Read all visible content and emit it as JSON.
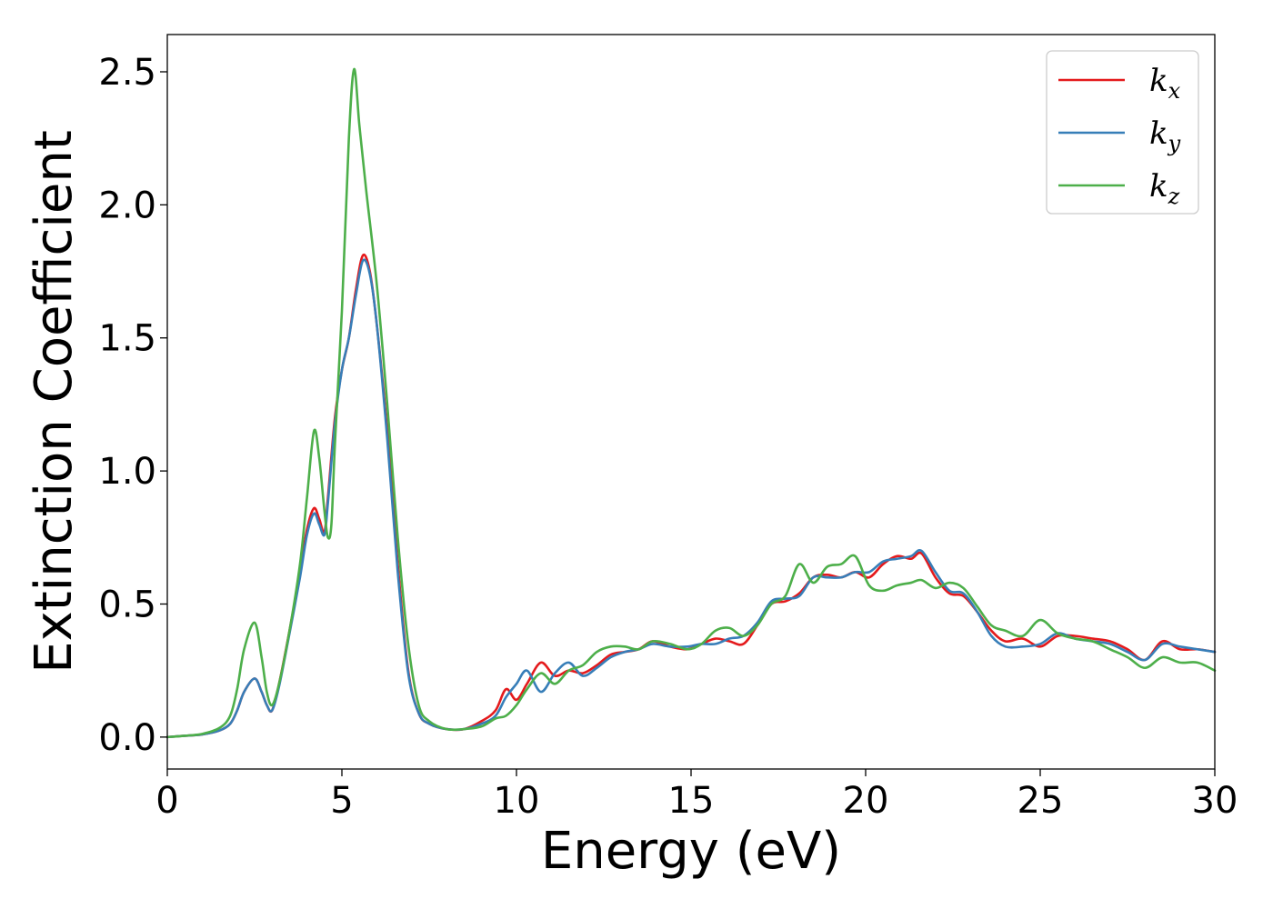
{
  "chart_data": {
    "type": "line",
    "title": "",
    "xlabel": "Energy (eV)",
    "ylabel": "Extinction Coefficient",
    "xlim": [
      0,
      30
    ],
    "ylim": [
      -0.12,
      2.64
    ],
    "xticks": [
      0,
      5,
      10,
      15,
      20,
      25,
      30
    ],
    "xtick_labels": [
      "0",
      "5",
      "10",
      "15",
      "20",
      "25",
      "30"
    ],
    "yticks": [
      0.0,
      0.5,
      1.0,
      1.5,
      2.0,
      2.5
    ],
    "ytick_labels": [
      "0.0",
      "0.5",
      "1.0",
      "1.5",
      "2.0",
      "2.5"
    ],
    "grid": false,
    "legend_position": "top-right",
    "series": [
      {
        "name": "k_x",
        "legend_base": "k",
        "legend_sub": "x",
        "color": "#e41a1c",
        "x": [
          0,
          0.5,
          1.0,
          1.5,
          1.8,
          2.0,
          2.2,
          2.5,
          2.7,
          2.85,
          3.0,
          3.2,
          3.5,
          3.8,
          4.0,
          4.2,
          4.35,
          4.5,
          4.6,
          4.8,
          5.0,
          5.2,
          5.4,
          5.6,
          5.8,
          6.0,
          6.3,
          6.6,
          6.9,
          7.2,
          7.5,
          8.0,
          8.5,
          9.0,
          9.4,
          9.7,
          10.0,
          10.3,
          10.7,
          11.1,
          11.5,
          11.9,
          12.3,
          12.7,
          13.1,
          13.5,
          13.9,
          14.4,
          14.9,
          15.3,
          15.7,
          16.1,
          16.5,
          16.9,
          17.3,
          17.7,
          18.1,
          18.5,
          18.9,
          19.3,
          19.7,
          20.1,
          20.5,
          20.9,
          21.3,
          21.6,
          22.0,
          22.4,
          22.8,
          23.2,
          23.6,
          24.0,
          24.5,
          25.0,
          25.5,
          26.0,
          26.5,
          27.0,
          27.5,
          28.0,
          28.5,
          29.0,
          29.5,
          30.0
        ],
        "y": [
          0.0,
          0.005,
          0.01,
          0.025,
          0.05,
          0.1,
          0.17,
          0.22,
          0.17,
          0.12,
          0.1,
          0.2,
          0.4,
          0.62,
          0.78,
          0.86,
          0.82,
          0.77,
          0.9,
          1.2,
          1.38,
          1.5,
          1.68,
          1.81,
          1.75,
          1.55,
          1.15,
          0.65,
          0.25,
          0.09,
          0.05,
          0.03,
          0.03,
          0.06,
          0.1,
          0.18,
          0.14,
          0.2,
          0.28,
          0.23,
          0.25,
          0.24,
          0.27,
          0.31,
          0.32,
          0.33,
          0.36,
          0.34,
          0.33,
          0.35,
          0.37,
          0.36,
          0.35,
          0.42,
          0.5,
          0.51,
          0.54,
          0.6,
          0.61,
          0.6,
          0.62,
          0.6,
          0.65,
          0.68,
          0.67,
          0.69,
          0.6,
          0.54,
          0.53,
          0.47,
          0.4,
          0.36,
          0.37,
          0.34,
          0.38,
          0.38,
          0.37,
          0.36,
          0.33,
          0.29,
          0.36,
          0.33,
          0.33,
          0.32
        ]
      },
      {
        "name": "k_y",
        "legend_base": "k",
        "legend_sub": "y",
        "color": "#377eb8",
        "x": [
          0,
          0.5,
          1.0,
          1.5,
          1.8,
          2.0,
          2.2,
          2.5,
          2.7,
          2.85,
          3.0,
          3.2,
          3.5,
          3.8,
          4.0,
          4.2,
          4.35,
          4.5,
          4.6,
          4.8,
          5.0,
          5.2,
          5.4,
          5.6,
          5.8,
          6.0,
          6.3,
          6.6,
          6.9,
          7.2,
          7.5,
          8.0,
          8.5,
          9.0,
          9.4,
          9.7,
          10.0,
          10.3,
          10.7,
          11.1,
          11.5,
          11.9,
          12.3,
          12.7,
          13.1,
          13.5,
          13.9,
          14.4,
          14.9,
          15.3,
          15.7,
          16.1,
          16.5,
          16.9,
          17.3,
          17.7,
          18.1,
          18.5,
          18.9,
          19.3,
          19.7,
          20.1,
          20.5,
          20.9,
          21.3,
          21.6,
          22.0,
          22.4,
          22.8,
          23.2,
          23.6,
          24.0,
          24.5,
          25.0,
          25.5,
          26.0,
          26.5,
          27.0,
          27.5,
          28.0,
          28.5,
          29.0,
          29.5,
          30.0
        ],
        "y": [
          0.0,
          0.005,
          0.01,
          0.025,
          0.05,
          0.1,
          0.17,
          0.22,
          0.17,
          0.12,
          0.1,
          0.19,
          0.39,
          0.6,
          0.76,
          0.84,
          0.8,
          0.76,
          0.88,
          1.18,
          1.38,
          1.5,
          1.66,
          1.79,
          1.74,
          1.55,
          1.12,
          0.62,
          0.24,
          0.09,
          0.05,
          0.03,
          0.03,
          0.05,
          0.08,
          0.15,
          0.2,
          0.25,
          0.17,
          0.24,
          0.28,
          0.23,
          0.26,
          0.3,
          0.32,
          0.33,
          0.35,
          0.34,
          0.34,
          0.35,
          0.35,
          0.37,
          0.38,
          0.43,
          0.51,
          0.52,
          0.53,
          0.6,
          0.6,
          0.6,
          0.62,
          0.62,
          0.66,
          0.67,
          0.68,
          0.7,
          0.62,
          0.55,
          0.54,
          0.47,
          0.38,
          0.34,
          0.34,
          0.35,
          0.39,
          0.37,
          0.36,
          0.35,
          0.32,
          0.29,
          0.35,
          0.34,
          0.33,
          0.32
        ]
      },
      {
        "name": "k_z",
        "legend_base": "k",
        "legend_sub": "z",
        "color": "#4daf4a",
        "x": [
          0,
          0.5,
          1.0,
          1.5,
          1.8,
          2.0,
          2.2,
          2.5,
          2.7,
          2.85,
          3.0,
          3.2,
          3.5,
          3.8,
          4.0,
          4.2,
          4.35,
          4.5,
          4.6,
          4.7,
          4.8,
          5.0,
          5.2,
          5.35,
          5.5,
          5.7,
          6.0,
          6.3,
          6.6,
          6.9,
          7.2,
          7.5,
          8.0,
          8.5,
          9.0,
          9.4,
          9.7,
          10.0,
          10.3,
          10.7,
          11.1,
          11.5,
          11.9,
          12.3,
          12.7,
          13.1,
          13.5,
          13.9,
          14.4,
          14.9,
          15.3,
          15.7,
          16.1,
          16.5,
          16.9,
          17.3,
          17.7,
          18.1,
          18.5,
          18.9,
          19.3,
          19.7,
          20.1,
          20.5,
          20.9,
          21.3,
          21.6,
          22.0,
          22.4,
          22.8,
          23.2,
          23.6,
          24.0,
          24.5,
          25.0,
          25.5,
          26.0,
          26.5,
          27.0,
          27.5,
          28.0,
          28.5,
          29.0,
          29.5,
          30.0
        ],
        "y": [
          0.0,
          0.005,
          0.012,
          0.035,
          0.08,
          0.18,
          0.33,
          0.43,
          0.3,
          0.17,
          0.12,
          0.2,
          0.4,
          0.65,
          0.9,
          1.15,
          1.05,
          0.85,
          0.75,
          0.8,
          1.1,
          1.6,
          2.25,
          2.51,
          2.3,
          2.05,
          1.7,
          1.25,
          0.75,
          0.35,
          0.12,
          0.06,
          0.03,
          0.03,
          0.04,
          0.07,
          0.08,
          0.12,
          0.18,
          0.24,
          0.2,
          0.25,
          0.27,
          0.32,
          0.34,
          0.34,
          0.33,
          0.36,
          0.35,
          0.33,
          0.35,
          0.4,
          0.41,
          0.38,
          0.42,
          0.5,
          0.53,
          0.65,
          0.58,
          0.64,
          0.65,
          0.68,
          0.57,
          0.55,
          0.57,
          0.58,
          0.59,
          0.56,
          0.58,
          0.56,
          0.49,
          0.42,
          0.4,
          0.38,
          0.44,
          0.39,
          0.37,
          0.36,
          0.33,
          0.3,
          0.26,
          0.3,
          0.28,
          0.28,
          0.25
        ]
      }
    ]
  }
}
